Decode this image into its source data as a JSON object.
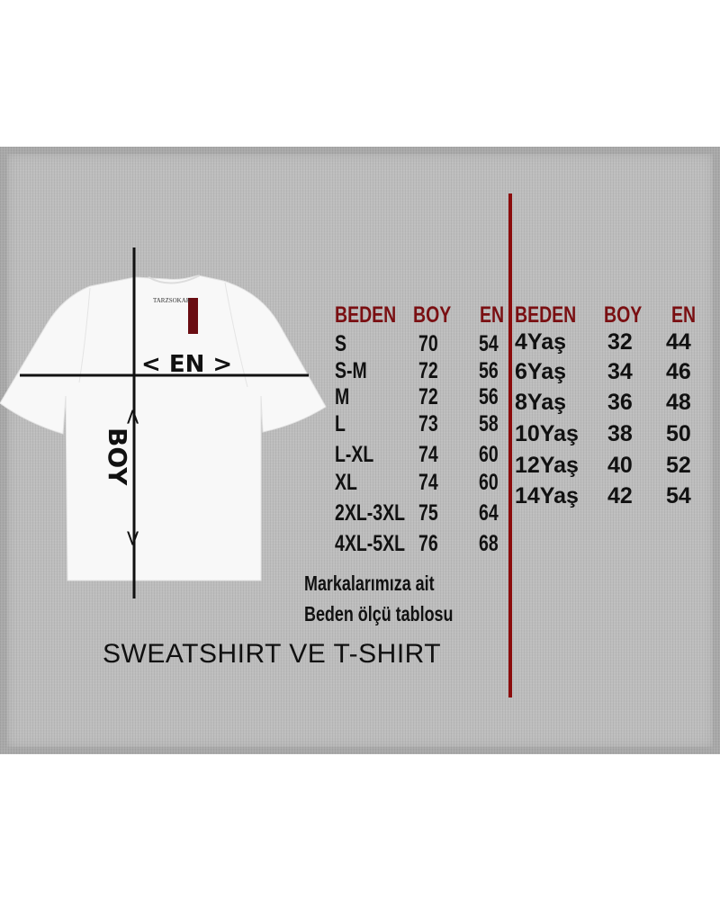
{
  "brand_tag": "TARZSOKAK",
  "diagram": {
    "width_label": "< EN >",
    "length_label": "BOY",
    "arrow_left": "<",
    "arrow_right": ">"
  },
  "adult_table": {
    "headers": [
      "BEDEN",
      "BOY",
      "EN"
    ],
    "rows": [
      [
        "S",
        "70",
        "54"
      ],
      [
        "S-M",
        "72",
        "56"
      ],
      [
        "M",
        "72",
        "56"
      ],
      [
        "L",
        "73",
        "58"
      ],
      [
        "L-XL",
        "74",
        "60"
      ],
      [
        "XL",
        "74",
        "60"
      ],
      [
        "2XL-3XL",
        "75",
        "64"
      ],
      [
        "4XL-5XL",
        "76",
        "68"
      ]
    ]
  },
  "kids_table": {
    "headers": [
      "BEDEN",
      "BOY",
      "EN"
    ],
    "rows": [
      [
        "4Yaş",
        "32",
        "44"
      ],
      [
        "6Yaş",
        "34",
        "46"
      ],
      [
        "8Yaş",
        "36",
        "48"
      ],
      [
        "10Yaş",
        "38",
        "50"
      ],
      [
        "12Yaş",
        "40",
        "52"
      ],
      [
        "14Yaş",
        "42",
        "54"
      ]
    ]
  },
  "note_line1": "Markalarımıza ait",
  "note_line2": "Beden ölçü tablosu",
  "title": "SWEATSHIRT VE T-SHIRT",
  "colors": {
    "header": "#7a0f12",
    "divider": "#8b0c0c",
    "panel": "#bdbdbd"
  }
}
